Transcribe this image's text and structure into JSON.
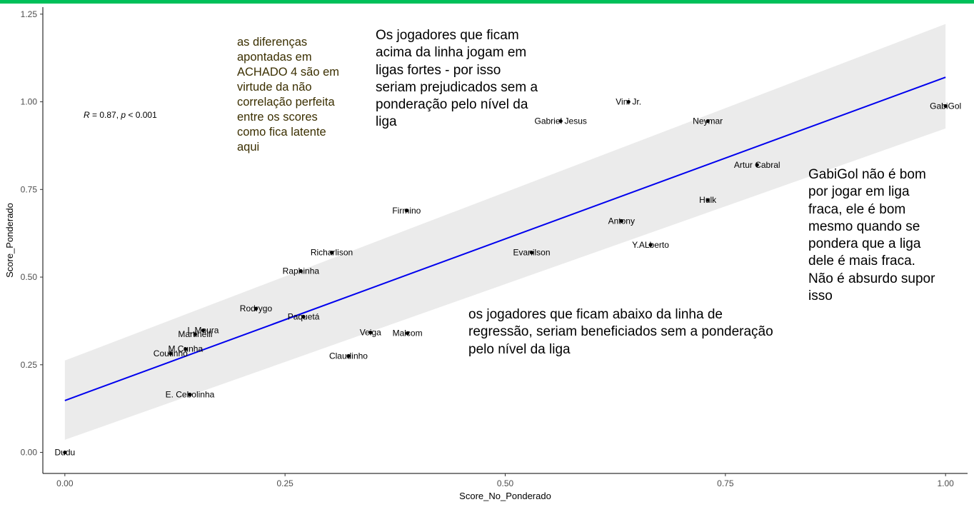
{
  "colors": {
    "top_bar": "#00c05a",
    "fit_line": "#0000ee",
    "confidence_band": "#ebebeb",
    "points": "#000000"
  },
  "chart_data": {
    "type": "scatter",
    "xlabel": "Score_No_Ponderado",
    "ylabel": "Score_Ponderado",
    "xlim": [
      -0.025,
      1.025
    ],
    "ylim": [
      -0.06,
      1.27
    ],
    "x_ticks": [
      {
        "value": 0.0,
        "label": "0.00"
      },
      {
        "value": 0.25,
        "label": "0.25"
      },
      {
        "value": 0.5,
        "label": "0.50"
      },
      {
        "value": 0.75,
        "label": "0.75"
      },
      {
        "value": 1.0,
        "label": "1.00"
      }
    ],
    "y_ticks": [
      {
        "value": 0.0,
        "label": "0.00"
      },
      {
        "value": 0.25,
        "label": "0.25"
      },
      {
        "value": 0.5,
        "label": "0.50"
      },
      {
        "value": 0.75,
        "label": "0.75"
      },
      {
        "value": 1.0,
        "label": "1.00"
      },
      {
        "value": 1.25,
        "label": "1.25"
      }
    ],
    "grid": false,
    "points": [
      {
        "label": "Dudu",
        "x": 0.0,
        "y": 0.0
      },
      {
        "label": "E. Cebolinha",
        "x": 0.142,
        "y": 0.165
      },
      {
        "label": "Coutinho",
        "x": 0.12,
        "y": 0.282
      },
      {
        "label": "M.Cunha",
        "x": 0.137,
        "y": 0.295
      },
      {
        "label": "Martinelli",
        "x": 0.148,
        "y": 0.337
      },
      {
        "label": "L.Moura",
        "x": 0.157,
        "y": 0.348
      },
      {
        "label": "Rodrygo",
        "x": 0.217,
        "y": 0.41
      },
      {
        "label": "Paquetá",
        "x": 0.271,
        "y": 0.387
      },
      {
        "label": "Raphinha",
        "x": 0.268,
        "y": 0.517
      },
      {
        "label": "Richarlison",
        "x": 0.303,
        "y": 0.57
      },
      {
        "label": "Claudinho",
        "x": 0.322,
        "y": 0.275
      },
      {
        "label": "Veiga",
        "x": 0.347,
        "y": 0.342
      },
      {
        "label": "Malcom",
        "x": 0.389,
        "y": 0.34
      },
      {
        "label": "Firmino",
        "x": 0.388,
        "y": 0.69
      },
      {
        "label": "Evanilson",
        "x": 0.53,
        "y": 0.57
      },
      {
        "label": "Gabriel Jesus",
        "x": 0.563,
        "y": 0.945
      },
      {
        "label": "Vini Jr.",
        "x": 0.64,
        "y": 1.0
      },
      {
        "label": "Antony",
        "x": 0.632,
        "y": 0.66
      },
      {
        "label": "Y.ALberto",
        "x": 0.665,
        "y": 0.592
      },
      {
        "label": "Neymar",
        "x": 0.73,
        "y": 0.945
      },
      {
        "label": "Hulk",
        "x": 0.73,
        "y": 0.72
      },
      {
        "label": "Artur Cabral",
        "x": 0.786,
        "y": 0.82
      },
      {
        "label": "GabiGol",
        "x": 1.0,
        "y": 0.988
      }
    ],
    "fit": {
      "intercept": 0.148,
      "slope": 0.922,
      "ci_low": [
        0.036,
        0.924
      ],
      "ci_high": [
        0.262,
        1.222
      ]
    },
    "stat_annotation": {
      "text": "R = 0.87, p < 0.001",
      "r_part": "R",
      "r_value": " = 0.87, ",
      "p_part": "p",
      "p_value": " < 0.001"
    }
  },
  "annotations": {
    "achado": "as diferenças\napontadas em\nACHADO 4 são em\nvirtude da não\ncorrelação perfeita\nentre os scores\ncomo fica latente\naqui",
    "acima": "Os jogadores que ficam\nacima da linha jogam em\nligas fortes - por isso\nseriam prejudicados sem a\nponderação pelo nível da\nliga",
    "gabigol": "GabiGol não é bom\npor jogar em liga\nfraca, ele é bom\nmesmo quando se\npondera que a liga\ndele é mais fraca.\nNão é absurdo supor\nisso",
    "abaixo": "os jogadores que ficam abaixo da linha de\nregressão, seriam beneficiados sem a ponderação\npelo nível da liga"
  }
}
